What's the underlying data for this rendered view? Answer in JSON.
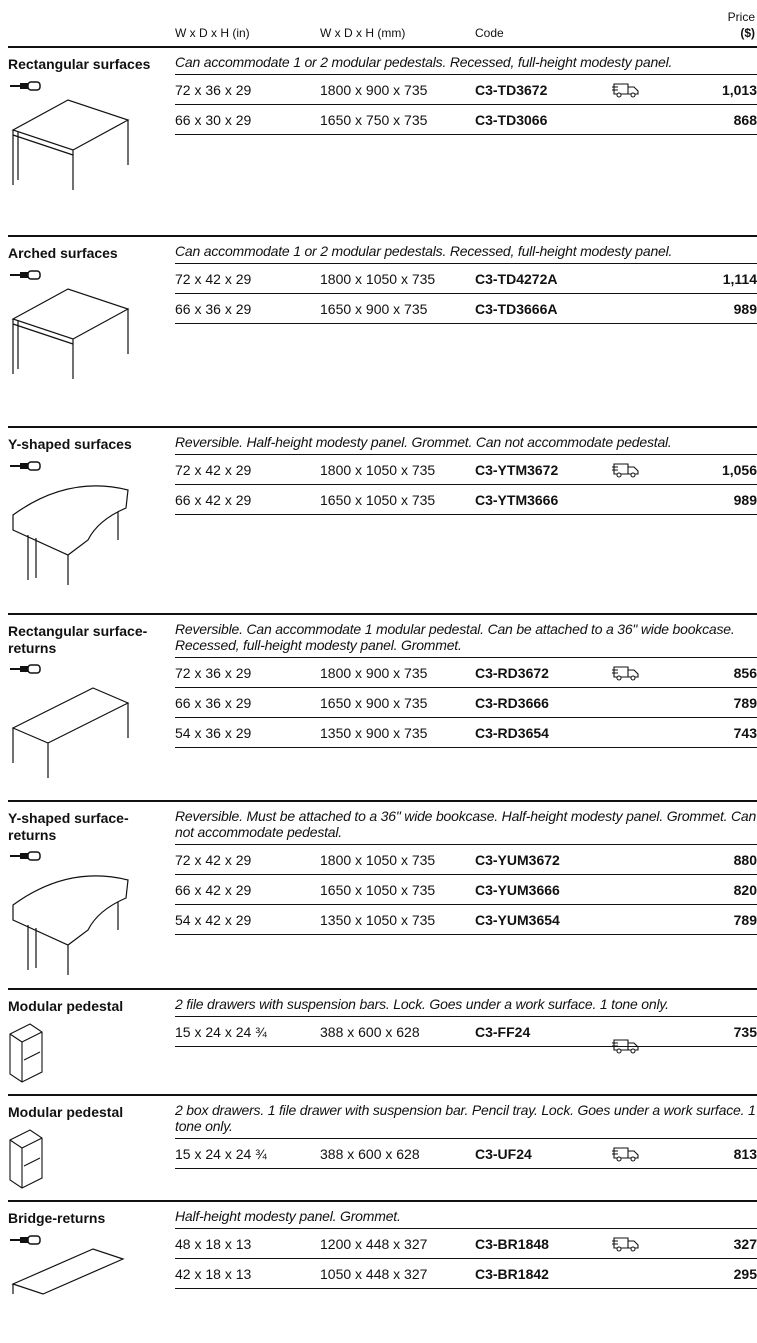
{
  "header": {
    "col_in": "W x D x H (in)",
    "col_mm": "W x D x H (mm)",
    "col_code": "Code",
    "col_price_1": "Price",
    "col_price_2": "($)"
  },
  "sections": [
    {
      "name": "Rectangular surfaces",
      "description": "Can accommodate 1 or 2 modular pedestals. Recessed, full-height modesty panel.",
      "rows": [
        {
          "in": "72 x 36 x 29",
          "mm": "1800 x 900 x 735",
          "code": "C3-TD3672",
          "price": "1,013",
          "quick_ship": true
        },
        {
          "in": "66 x 30 x 29",
          "mm": "1650 x 750 x 735",
          "code": "C3-TD3066",
          "price": "868",
          "quick_ship": false
        }
      ]
    },
    {
      "name": "Arched surfaces",
      "description": "Can accommodate 1 or 2 modular pedestals. Recessed, full-height modesty panel.",
      "rows": [
        {
          "in": "72 x 42 x 29",
          "mm": "1800 x 1050 x 735",
          "code": "C3-TD4272A",
          "price": "1,114",
          "quick_ship": false
        },
        {
          "in": "66 x 36 x 29",
          "mm": "1650 x 900 x 735",
          "code": "C3-TD3666A",
          "price": "989",
          "quick_ship": false
        }
      ]
    },
    {
      "name": "Y-shaped surfaces",
      "description": "Reversible. Half-height modesty panel. Grommet. Can not accommodate pedestal.",
      "rows": [
        {
          "in": "72 x 42 x 29",
          "mm": "1800 x 1050 x 735",
          "code": "C3-YTM3672",
          "price": "1,056",
          "quick_ship": true
        },
        {
          "in": "66 x 42 x 29",
          "mm": "1650 x 1050 x 735",
          "code": "C3-YTM3666",
          "price": "989",
          "quick_ship": false
        }
      ]
    },
    {
      "name": "Rectangular surface-returns",
      "description": "Reversible. Can accommodate 1 modular pedestal. Can be attached to a 36\" wide bookcase. Recessed, full-height modesty panel. Grommet.",
      "rows": [
        {
          "in": "72 x 36 x 29",
          "mm": "1800 x 900 x 735",
          "code": "C3-RD3672",
          "price": "856",
          "quick_ship": true
        },
        {
          "in": "66 x 36 x 29",
          "mm": "1650 x 900 x 735",
          "code": "C3-RD3666",
          "price": "789",
          "quick_ship": false
        },
        {
          "in": "54 x 36 x 29",
          "mm": "1350 x 900 x 735",
          "code": "C3-RD3654",
          "price": "743",
          "quick_ship": false
        }
      ]
    },
    {
      "name": "Y-shaped surface-returns",
      "description": "Reversible. Must be attached to a 36\" wide bookcase. Half-height modesty panel. Grommet. Can not accommodate pedestal.",
      "rows": [
        {
          "in": "72 x 42 x 29",
          "mm": "1800 x 1050 x 735",
          "code": "C3-YUM3672",
          "price": "880",
          "quick_ship": false
        },
        {
          "in": "66 x 42 x 29",
          "mm": "1650 x 1050 x 735",
          "code": "C3-YUM3666",
          "price": "820",
          "quick_ship": false
        },
        {
          "in": "54 x 42 x 29",
          "mm": "1350 x 1050 x 735",
          "code": "C3-YUM3654",
          "price": "789",
          "quick_ship": false
        }
      ]
    },
    {
      "name": "Modular pedestal",
      "description": "2 file drawers with suspension bars. Lock. Goes under a work surface. 1 tone only.",
      "rows": [
        {
          "in": "15 x 24 x 24 ¾",
          "mm": "388 x 600 x 628",
          "code": "C3-FF24",
          "price": "735",
          "quick_ship": true
        }
      ]
    },
    {
      "name": "Modular pedestal",
      "description": "2 box drawers. 1 file drawer with suspension bar. Pencil tray. Lock. Goes under a work surface. 1 tone only.",
      "rows": [
        {
          "in": "15 x 24 x 24 ¾",
          "mm": "388 x 600 x 628",
          "code": "C3-UF24",
          "price": "813",
          "quick_ship": true
        }
      ]
    },
    {
      "name": "Bridge-returns",
      "description": "Half-height modesty panel. Grommet.",
      "rows": [
        {
          "in": "48 x 18 x 13",
          "mm": "1200 x 448 x 327",
          "code": "C3-BR1848",
          "price": "327",
          "quick_ship": true
        },
        {
          "in": "42 x 18 x 13",
          "mm": "1050 x 448 x 327",
          "code": "C3-BR1842",
          "price": "295",
          "quick_ship": false
        }
      ]
    }
  ]
}
